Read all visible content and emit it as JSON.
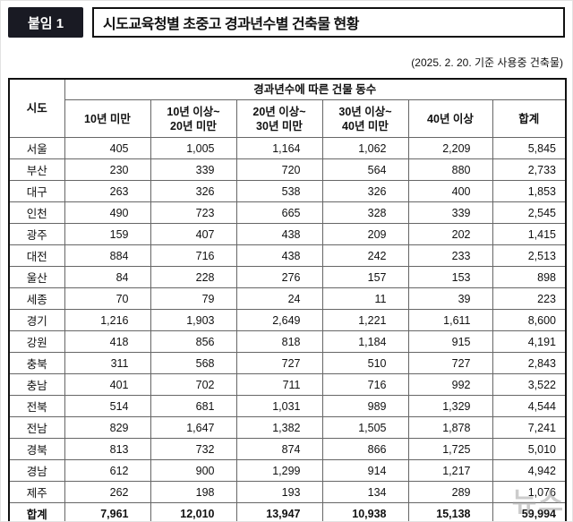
{
  "badge": {
    "label": "붙임 1"
  },
  "title": "시도교육청별 초중고 경과년수별 건축물 현황",
  "subtitle": "(2025. 2. 20. 기준 사용중 건축물)",
  "colors": {
    "badge_bg": "#191a23",
    "border": "#111111",
    "grid": "#666666",
    "text": "#111111"
  },
  "watermark": "뉴스",
  "table": {
    "corner_header": "시도",
    "group_header": "경과년수에 따른 건물 동수",
    "columns": [
      "10년 미만",
      "10년 이상~\n20년 미만",
      "20년 이상~\n30년 미만",
      "30년 이상~\n40년 미만",
      "40년 이상",
      "합계"
    ],
    "rows": [
      {
        "region": "서울",
        "values": [
          "405",
          "1,005",
          "1,164",
          "1,062",
          "2,209",
          "5,845"
        ]
      },
      {
        "region": "부산",
        "values": [
          "230",
          "339",
          "720",
          "564",
          "880",
          "2,733"
        ]
      },
      {
        "region": "대구",
        "values": [
          "263",
          "326",
          "538",
          "326",
          "400",
          "1,853"
        ]
      },
      {
        "region": "인천",
        "values": [
          "490",
          "723",
          "665",
          "328",
          "339",
          "2,545"
        ]
      },
      {
        "region": "광주",
        "values": [
          "159",
          "407",
          "438",
          "209",
          "202",
          "1,415"
        ]
      },
      {
        "region": "대전",
        "values": [
          "884",
          "716",
          "438",
          "242",
          "233",
          "2,513"
        ]
      },
      {
        "region": "울산",
        "values": [
          "84",
          "228",
          "276",
          "157",
          "153",
          "898"
        ]
      },
      {
        "region": "세종",
        "values": [
          "70",
          "79",
          "24",
          "11",
          "39",
          "223"
        ]
      },
      {
        "region": "경기",
        "values": [
          "1,216",
          "1,903",
          "2,649",
          "1,221",
          "1,611",
          "8,600"
        ]
      },
      {
        "region": "강원",
        "values": [
          "418",
          "856",
          "818",
          "1,184",
          "915",
          "4,191"
        ]
      },
      {
        "region": "충북",
        "values": [
          "311",
          "568",
          "727",
          "510",
          "727",
          "2,843"
        ]
      },
      {
        "region": "충남",
        "values": [
          "401",
          "702",
          "711",
          "716",
          "992",
          "3,522"
        ]
      },
      {
        "region": "전북",
        "values": [
          "514",
          "681",
          "1,031",
          "989",
          "1,329",
          "4,544"
        ]
      },
      {
        "region": "전남",
        "values": [
          "829",
          "1,647",
          "1,382",
          "1,505",
          "1,878",
          "7,241"
        ]
      },
      {
        "region": "경북",
        "values": [
          "813",
          "732",
          "874",
          "866",
          "1,725",
          "5,010"
        ]
      },
      {
        "region": "경남",
        "values": [
          "612",
          "900",
          "1,299",
          "914",
          "1,217",
          "4,942"
        ]
      },
      {
        "region": "제주",
        "values": [
          "262",
          "198",
          "193",
          "134",
          "289",
          "1,076"
        ]
      }
    ],
    "total_row": {
      "region": "합계",
      "values": [
        "7,961",
        "12,010",
        "13,947",
        "10,938",
        "15,138",
        "59,994"
      ]
    }
  }
}
